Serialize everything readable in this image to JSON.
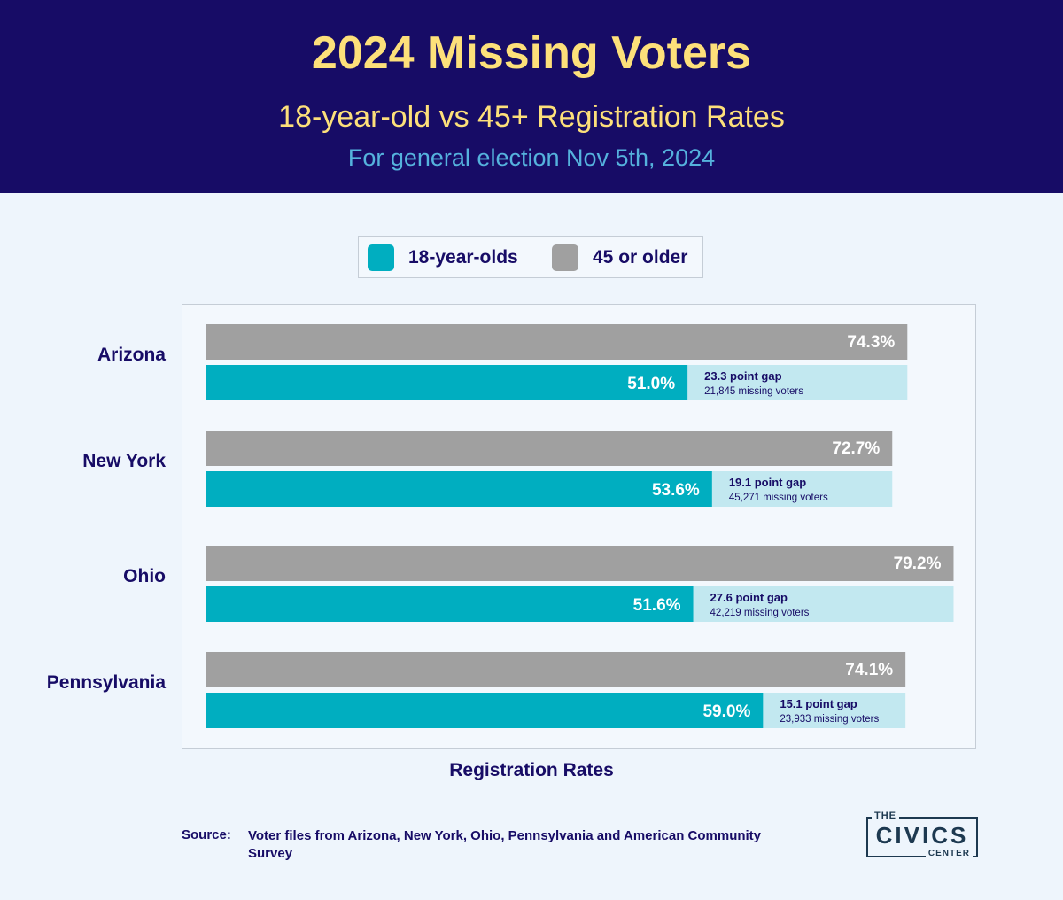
{
  "header": {
    "title": "2024 Missing Voters",
    "subtitle": "18-year-old vs 45+ Registration Rates",
    "subsubtitle": "For general election Nov 5th, 2024"
  },
  "legend": {
    "placement": "top-center",
    "items": [
      {
        "label": "18-year-olds",
        "color": "#00aec0"
      },
      {
        "label": "45 or older",
        "color": "#a0a0a0"
      }
    ]
  },
  "chart_data": {
    "type": "bar",
    "orientation": "horizontal",
    "xlabel": "Registration Rates",
    "categories": [
      "Arizona",
      "New York",
      "Ohio",
      "Pennsylvania"
    ],
    "series": [
      {
        "name": "45 or older",
        "color": "#a0a0a0",
        "values": [
          74.3,
          72.7,
          79.2,
          74.1
        ]
      },
      {
        "name": "18-year-olds",
        "color": "#00aec0",
        "values": [
          51.0,
          53.6,
          51.6,
          59.0
        ]
      }
    ],
    "value_labels": {
      "45 or older": [
        "74.3%",
        "72.7%",
        "79.2%",
        "74.1%"
      ],
      "18-year-olds": [
        "51.0%",
        "53.6%",
        "51.6%",
        "59.0%"
      ]
    },
    "gap_color": "#c2e8f0",
    "annotations": [
      {
        "gap": "23.3 point gap",
        "missing": "21,845 missing voters"
      },
      {
        "gap": "19.1 point gap",
        "missing": "45,271 missing voters"
      },
      {
        "gap": "27.6 point gap",
        "missing": "42,219 missing voters"
      },
      {
        "gap": "15.1 point gap",
        "missing": "23,933 missing voters"
      }
    ],
    "grid": false
  },
  "source": {
    "label": "Source:",
    "text": "Voter files from Arizona, New York, Ohio, Pennsylvania and American Community Survey"
  },
  "logo": {
    "top": "THE",
    "main": "CIVICS",
    "bottom": "CENTER"
  }
}
